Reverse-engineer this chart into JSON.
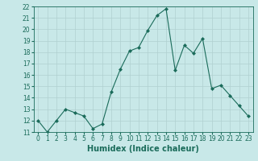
{
  "x": [
    0,
    1,
    2,
    3,
    4,
    5,
    6,
    7,
    8,
    9,
    10,
    11,
    12,
    13,
    14,
    15,
    16,
    17,
    18,
    19,
    20,
    21,
    22,
    23
  ],
  "y": [
    12.0,
    11.0,
    12.0,
    13.0,
    12.7,
    12.4,
    11.3,
    11.7,
    14.5,
    16.5,
    18.1,
    18.4,
    19.9,
    21.2,
    21.8,
    16.4,
    18.6,
    17.9,
    19.2,
    14.8,
    15.1,
    14.2,
    13.3,
    12.4
  ],
  "line_color": "#1a6b5a",
  "marker": "D",
  "marker_size": 2.0,
  "bg_color": "#c8e8e8",
  "grid_color": "#b0d0d0",
  "xlabel": "Humidex (Indice chaleur)",
  "ylim": [
    11,
    22
  ],
  "xlim": [
    -0.5,
    23.5
  ],
  "yticks": [
    11,
    12,
    13,
    14,
    15,
    16,
    17,
    18,
    19,
    20,
    21,
    22
  ],
  "xticks": [
    0,
    1,
    2,
    3,
    4,
    5,
    6,
    7,
    8,
    9,
    10,
    11,
    12,
    13,
    14,
    15,
    16,
    17,
    18,
    19,
    20,
    21,
    22,
    23
  ],
  "tick_label_fontsize": 5.5,
  "xlabel_fontsize": 7.0,
  "tick_color": "#1a6b5a",
  "label_color": "#1a6b5a",
  "spine_color": "#1a6b5a"
}
